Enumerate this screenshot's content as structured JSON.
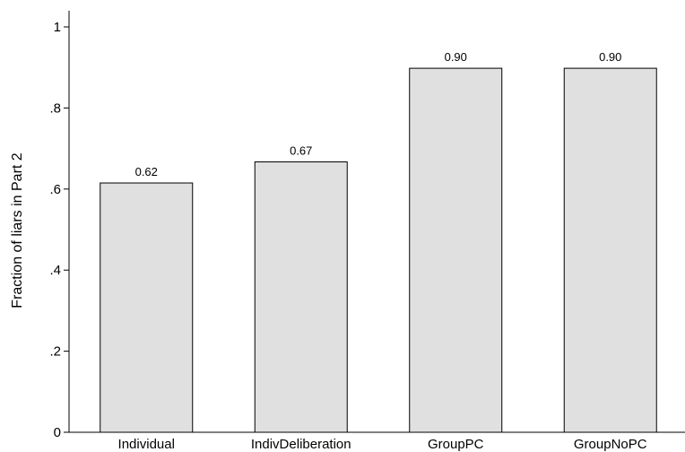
{
  "chart_data": {
    "type": "bar",
    "categories": [
      "Individual",
      "IndivDeliberation",
      "GroupPC",
      "GroupNoPC"
    ],
    "values": [
      0.615,
      0.667,
      0.898,
      0.898
    ],
    "data_labels": [
      "0.62",
      "0.67",
      "0.90",
      "0.90"
    ],
    "title": "",
    "xlabel": "",
    "ylabel": "Fraction of liars in Part 2",
    "ylim": [
      0,
      1.04
    ],
    "yticks": [
      0,
      0.2,
      0.4,
      0.6,
      0.8,
      1
    ],
    "ytick_labels": [
      "0",
      ".2",
      ".4",
      ".6",
      ".8",
      "1"
    ],
    "grid": false,
    "legend": "none",
    "bar_color": "#e0e0e0",
    "edge_color": "#000000"
  }
}
